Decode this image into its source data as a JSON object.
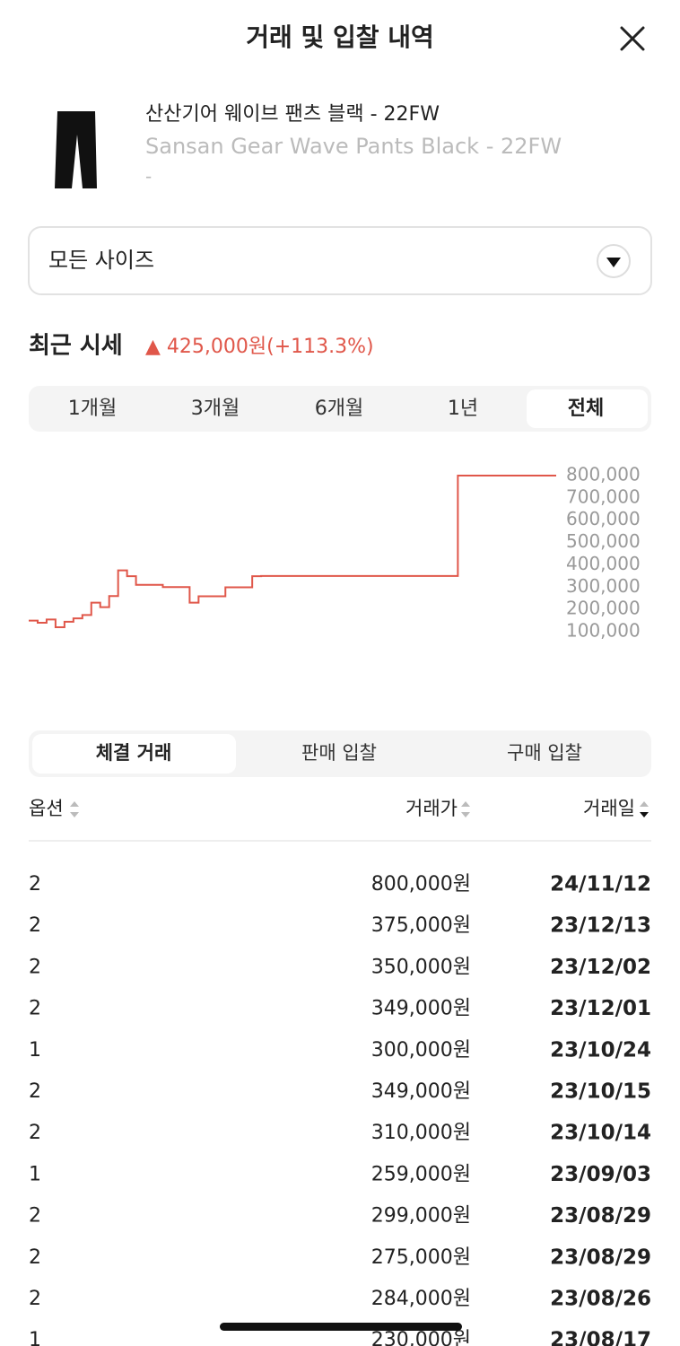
{
  "header": {
    "title": "거래 및 입찰 내역"
  },
  "product": {
    "name_ko": "산산기어 웨이브 팬츠 블랙 - 22FW",
    "name_en": "Sansan Gear Wave Pants Black - 22FW",
    "sub": "-"
  },
  "size_select": "모든 사이즈",
  "price": {
    "label": "최근 시세",
    "change": "▲ 425,000원(+113.3%)"
  },
  "period_tabs": {
    "items": [
      "1개월",
      "3개월",
      "6개월",
      "1년",
      "전체"
    ],
    "active": 4
  },
  "chart_data": {
    "type": "line",
    "color": "#e0574a",
    "values": [
      150000,
      140000,
      155000,
      120000,
      145000,
      160000,
      175000,
      230000,
      210000,
      260000,
      375000,
      349000,
      310000,
      310000,
      310000,
      300000,
      300000,
      300000,
      230000,
      259000,
      259000,
      259000,
      299000,
      299000,
      299000,
      349000,
      350000,
      350000,
      350000,
      350000,
      350000,
      350000,
      350000,
      350000,
      350000,
      350000,
      350000,
      350000,
      350000,
      350000,
      350000,
      350000,
      350000,
      350000,
      350000,
      350000,
      350000,
      350000,
      800000,
      800000,
      800000,
      800000,
      800000,
      800000,
      800000,
      800000,
      800000,
      800000,
      800000,
      800000
    ],
    "ylim": [
      100000,
      800000
    ],
    "yticks": [
      {
        "value": 800000,
        "label": "800,000"
      },
      {
        "value": 700000,
        "label": "700,000"
      },
      {
        "value": 600000,
        "label": "600,000"
      },
      {
        "value": 500000,
        "label": "500,000"
      },
      {
        "value": 400000,
        "label": "400,000"
      },
      {
        "value": 300000,
        "label": "300,000"
      },
      {
        "value": 200000,
        "label": "200,000"
      },
      {
        "value": 100000,
        "label": "100,000"
      }
    ]
  },
  "trade_tabs": {
    "items": [
      "체결 거래",
      "판매 입찰",
      "구매 입찰"
    ],
    "active": 0
  },
  "table": {
    "columns": [
      "옵션",
      "거래가",
      "거래일"
    ],
    "rows": [
      [
        "2",
        "800,000원",
        "24/11/12"
      ],
      [
        "2",
        "375,000원",
        "23/12/13"
      ],
      [
        "2",
        "350,000원",
        "23/12/02"
      ],
      [
        "2",
        "349,000원",
        "23/12/01"
      ],
      [
        "1",
        "300,000원",
        "23/10/24"
      ],
      [
        "2",
        "349,000원",
        "23/10/15"
      ],
      [
        "2",
        "310,000원",
        "23/10/14"
      ],
      [
        "1",
        "259,000원",
        "23/09/03"
      ],
      [
        "2",
        "299,000원",
        "23/08/29"
      ],
      [
        "2",
        "275,000원",
        "23/08/29"
      ],
      [
        "2",
        "284,000원",
        "23/08/26"
      ],
      [
        "1",
        "230,000원",
        "23/08/17"
      ]
    ]
  }
}
